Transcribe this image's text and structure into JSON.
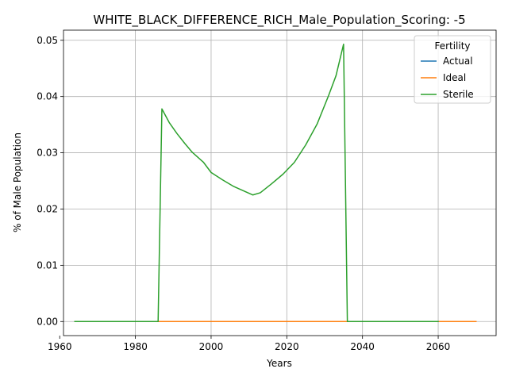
{
  "chart_data": {
    "type": "line",
    "title": "WHITE_BLACK_DIFFERENCE_RICH_Male_Population_Scoring: -5",
    "xlabel": "Years",
    "ylabel": "% of Male Population",
    "xlim": [
      1961,
      2075.3
    ],
    "ylim": [
      -0.0025,
      0.0518
    ],
    "x_ticks": [
      1960,
      1980,
      2000,
      2020,
      2040,
      2060
    ],
    "y_ticks": [
      0.0,
      0.01,
      0.02,
      0.03,
      0.04,
      0.05
    ],
    "y_tick_labels": [
      "0.00",
      "0.01",
      "0.02",
      "0.03",
      "0.04",
      "0.05"
    ],
    "grid": true,
    "legend": {
      "title": "Fertility",
      "placement": "top-right"
    },
    "series": [
      {
        "name": "Actual",
        "color": "#1f77b4",
        "points": [
          [
            1964,
            0.0
          ],
          [
            2060,
            0.0
          ]
        ]
      },
      {
        "name": "Ideal",
        "color": "#ff7f0e",
        "points": [
          [
            1964,
            0.0
          ],
          [
            2070,
            0.0
          ]
        ]
      },
      {
        "name": "Sterile",
        "color": "#2ca02c",
        "points": [
          [
            1964,
            0.0
          ],
          [
            1986,
            0.0
          ],
          [
            1987,
            0.0378
          ],
          [
            1989,
            0.0353
          ],
          [
            1991,
            0.0334
          ],
          [
            1993,
            0.0317
          ],
          [
            1995,
            0.0301
          ],
          [
            1998,
            0.0283
          ],
          [
            2000,
            0.0265
          ],
          [
            2003,
            0.0252
          ],
          [
            2006,
            0.024
          ],
          [
            2009,
            0.0231
          ],
          [
            2011,
            0.0225
          ],
          [
            2013,
            0.0229
          ],
          [
            2016,
            0.0245
          ],
          [
            2019,
            0.0262
          ],
          [
            2022,
            0.0283
          ],
          [
            2025,
            0.0314
          ],
          [
            2028,
            0.0351
          ],
          [
            2031,
            0.0401
          ],
          [
            2033,
            0.0437
          ],
          [
            2035,
            0.0493
          ],
          [
            2036,
            0.0
          ],
          [
            2060,
            0.0
          ]
        ]
      }
    ]
  }
}
